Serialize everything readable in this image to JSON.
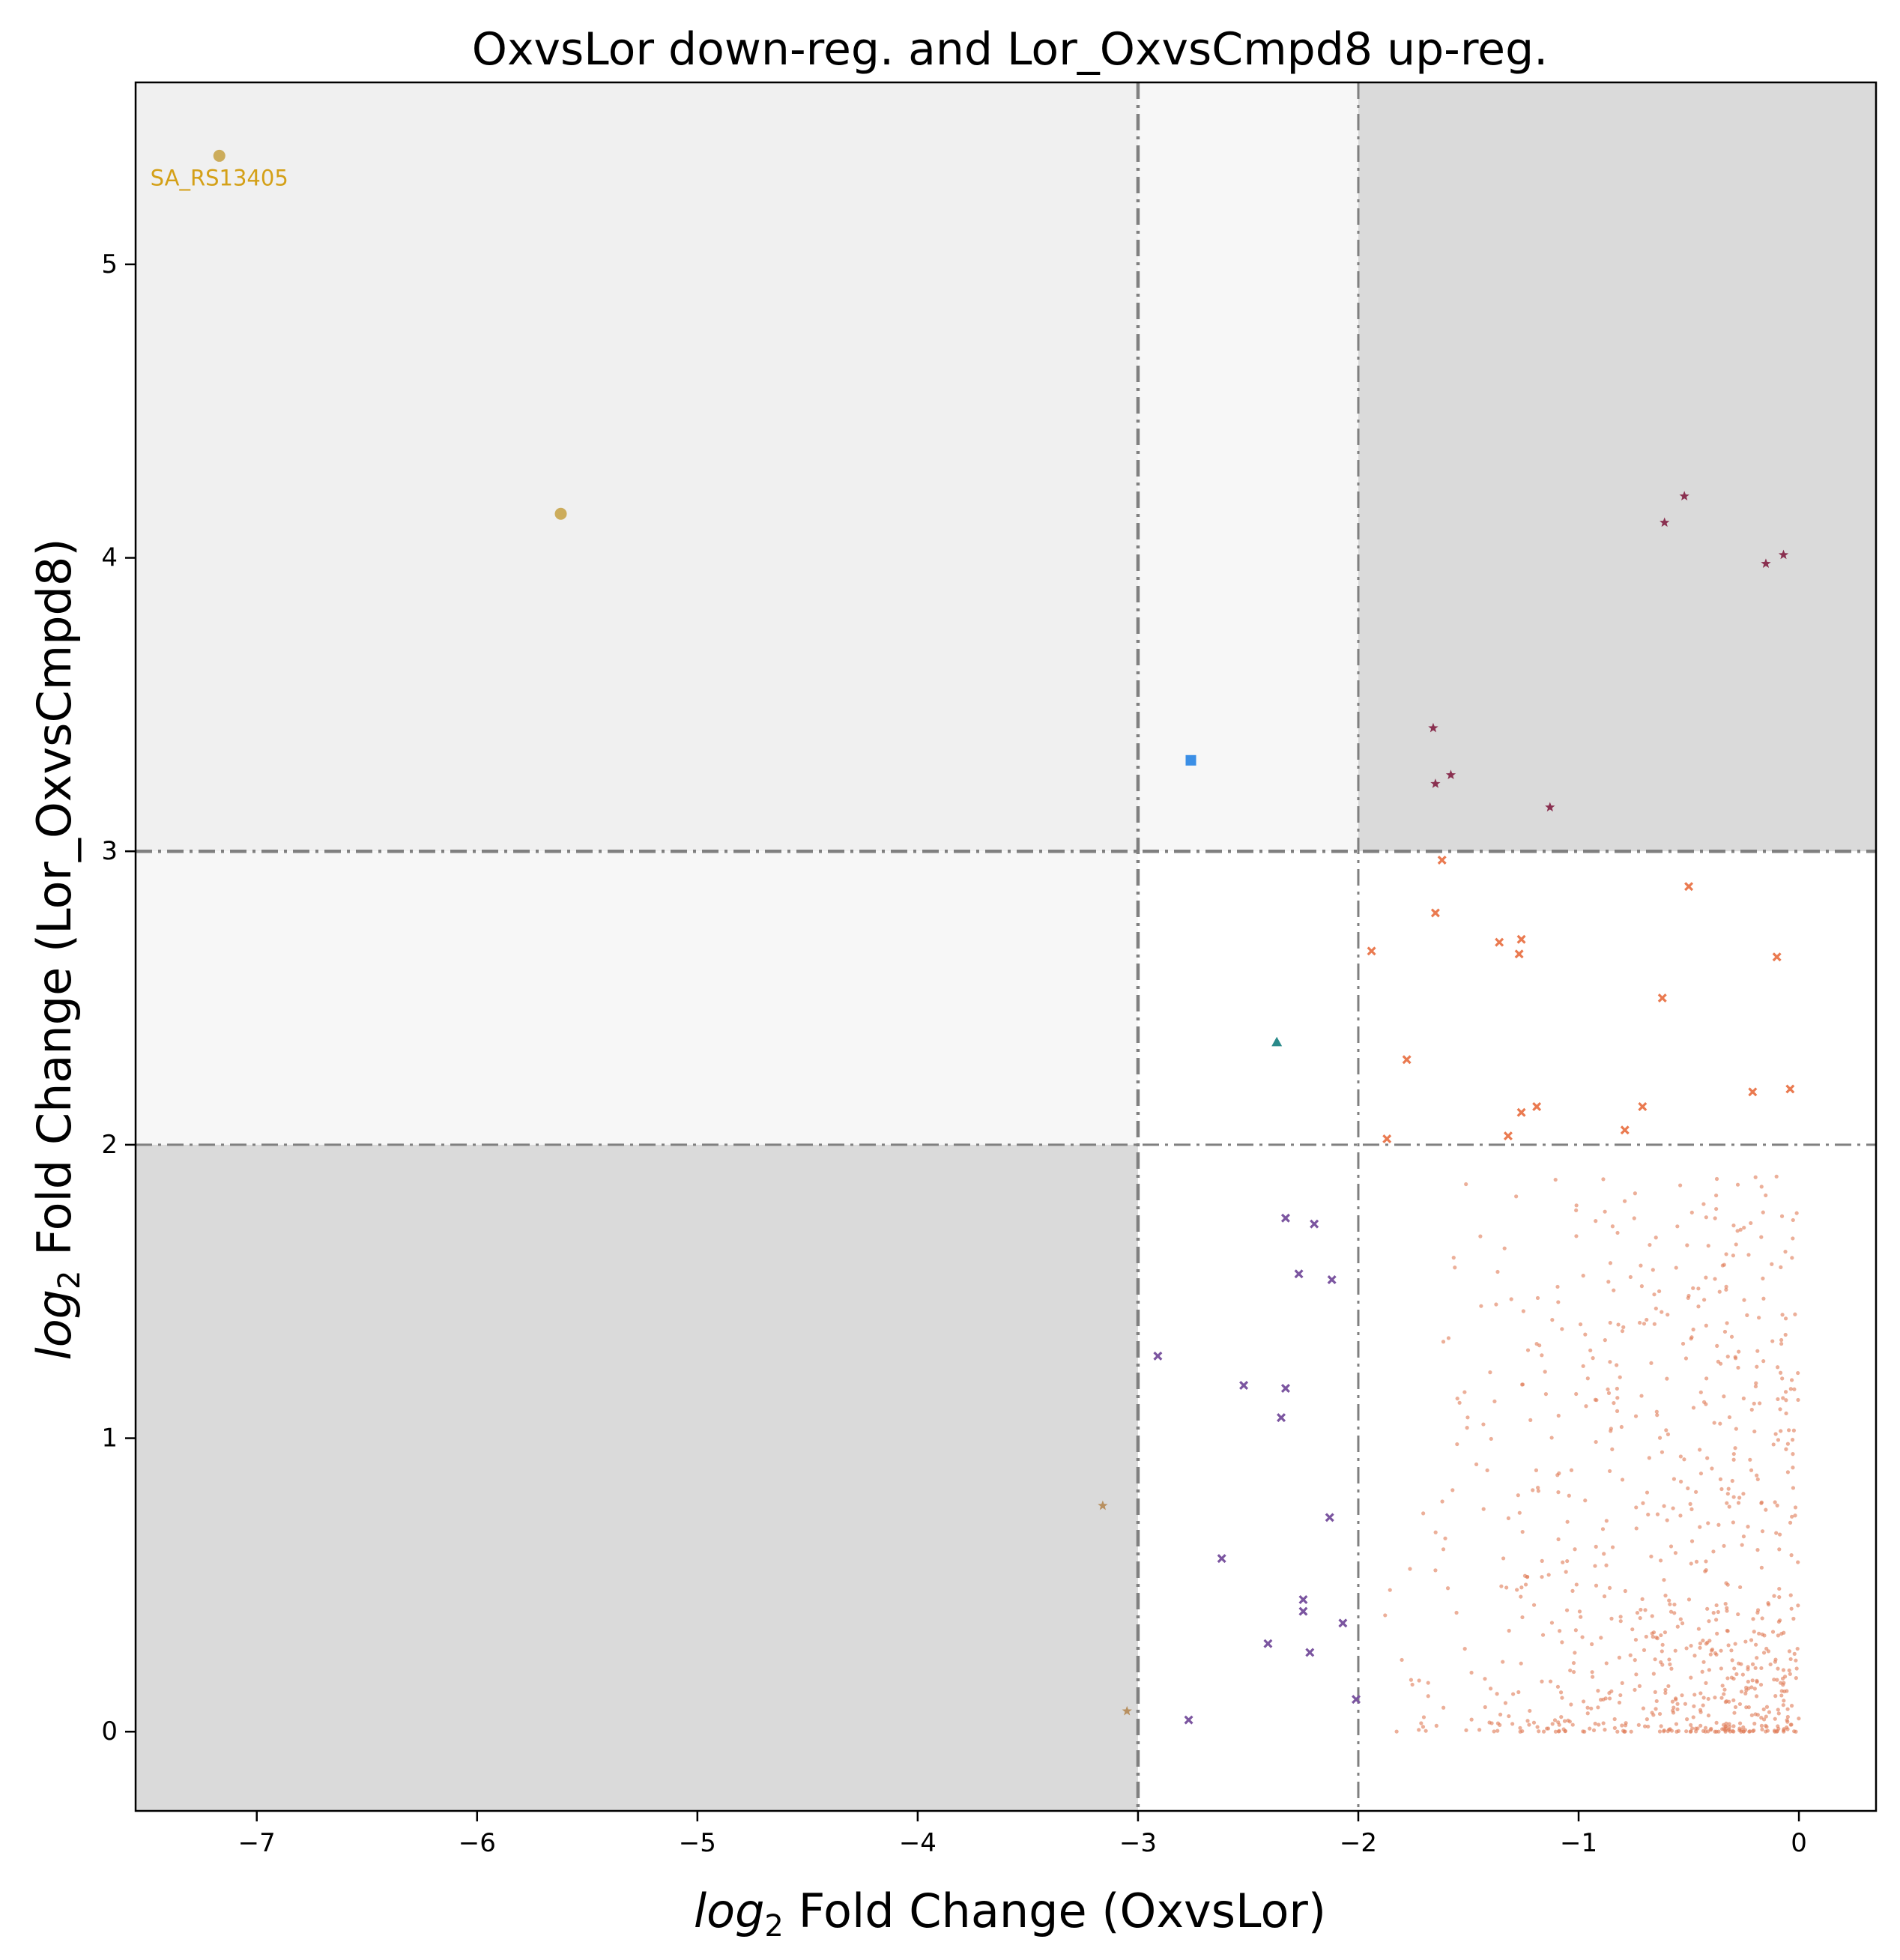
{
  "chart_data": {
    "type": "scatter",
    "title": "OxvsLor down-reg. and Lor_OxvsCmpd8 up-reg.",
    "xlabel": {
      "italic": "log",
      "sub": "2",
      "rest": " Fold Change (OxvsLor)"
    },
    "ylabel": {
      "italic": "log",
      "sub": "2",
      "rest": " Fold Change (Lor_OxvsCmpd8)"
    },
    "xlim": [
      -7.55,
      0.35
    ],
    "ylim": [
      -0.27,
      5.62
    ],
    "xticks": [
      -7,
      -6,
      -5,
      -4,
      -3,
      -2,
      -1,
      0
    ],
    "xtick_labels": [
      "−7",
      "−6",
      "−5",
      "−4",
      "−3",
      "−2",
      "−1",
      "0"
    ],
    "yticks": [
      0,
      1,
      2,
      3,
      4,
      5
    ],
    "ytick_labels": [
      "0",
      "1",
      "2",
      "3",
      "4",
      "5"
    ],
    "grid": false,
    "legend": "none",
    "thresholds": {
      "x_strong": -3,
      "x_weak": -2,
      "y_weak": 2,
      "y_strong": 3
    },
    "regions": [
      {
        "x": [
          -7.55,
          -3
        ],
        "y": [
          3,
          5.62
        ],
        "color": "#f0f0f0"
      },
      {
        "x": [
          -3,
          -2
        ],
        "y": [
          3,
          5.62
        ],
        "color": "#f7f7f7"
      },
      {
        "x": [
          -7.55,
          -3
        ],
        "y": [
          2,
          3
        ],
        "color": "#f7f7f7"
      },
      {
        "x": [
          -2,
          0.35
        ],
        "y": [
          3,
          5.62
        ],
        "color": "#dadada"
      },
      {
        "x": [
          -7.55,
          -3
        ],
        "y": [
          -0.27,
          2
        ],
        "color": "#dadada"
      }
    ],
    "annotations": [
      {
        "text": "SA_RS13405",
        "x": -7.17,
        "y": 5.29,
        "color": "#d4a017"
      }
    ],
    "series": [
      {
        "marker": "circle",
        "color": "#c8a44a",
        "size": 8,
        "points": [
          [
            -7.17,
            5.37
          ],
          [
            -5.62,
            4.15
          ]
        ]
      },
      {
        "marker": "square",
        "color": "#3b8fe6",
        "size": 7,
        "points": [
          [
            -2.76,
            3.31
          ]
        ]
      },
      {
        "marker": "triangle",
        "color": "#2a8a8a",
        "size": 7,
        "points": [
          [
            -2.37,
            2.35
          ]
        ]
      },
      {
        "marker": "star",
        "color": "#8a3050",
        "size": 6,
        "points": [
          [
            -0.52,
            4.21
          ],
          [
            -0.61,
            4.12
          ],
          [
            -0.07,
            4.01
          ],
          [
            -0.15,
            3.98
          ],
          [
            -1.66,
            3.42
          ],
          [
            -1.65,
            3.23
          ],
          [
            -1.58,
            3.26
          ],
          [
            -1.13,
            3.15
          ]
        ]
      },
      {
        "marker": "star",
        "color": "#b89060",
        "size": 6,
        "points": [
          [
            -3.16,
            0.77
          ],
          [
            -3.05,
            0.07
          ]
        ]
      },
      {
        "marker": "x",
        "color": "#ea7a50",
        "size": 6,
        "points": [
          [
            -1.62,
            2.97
          ],
          [
            -0.5,
            2.88
          ],
          [
            -1.65,
            2.79
          ],
          [
            -1.36,
            2.69
          ],
          [
            -1.26,
            2.7
          ],
          [
            -1.27,
            2.65
          ],
          [
            -1.94,
            2.66
          ],
          [
            -0.1,
            2.64
          ],
          [
            -0.62,
            2.5
          ],
          [
            -1.78,
            2.29
          ],
          [
            -0.21,
            2.18
          ],
          [
            -0.04,
            2.19
          ],
          [
            -0.71,
            2.13
          ],
          [
            -1.19,
            2.13
          ],
          [
            -1.26,
            2.11
          ],
          [
            -0.79,
            2.05
          ],
          [
            -1.32,
            2.03
          ],
          [
            -1.87,
            2.02
          ]
        ]
      },
      {
        "marker": "x",
        "color": "#7b55a0",
        "size": 6,
        "points": [
          [
            -2.33,
            1.75
          ],
          [
            -2.2,
            1.73
          ],
          [
            -2.27,
            1.56
          ],
          [
            -2.12,
            1.54
          ],
          [
            -2.91,
            1.28
          ],
          [
            -2.52,
            1.18
          ],
          [
            -2.33,
            1.17
          ],
          [
            -2.35,
            1.07
          ],
          [
            -2.13,
            0.73
          ],
          [
            -2.62,
            0.59
          ],
          [
            -2.25,
            0.45
          ],
          [
            -2.25,
            0.41
          ],
          [
            -2.07,
            0.37
          ],
          [
            -2.41,
            0.3
          ],
          [
            -2.22,
            0.27
          ],
          [
            -2.01,
            0.11
          ],
          [
            -2.77,
            0.04
          ]
        ]
      }
    ],
    "background_cloud": {
      "color": "#e07a55",
      "count": 820,
      "x_range": [
        -2.0,
        0.0
      ],
      "y_range": [
        0.0,
        1.9
      ]
    }
  }
}
